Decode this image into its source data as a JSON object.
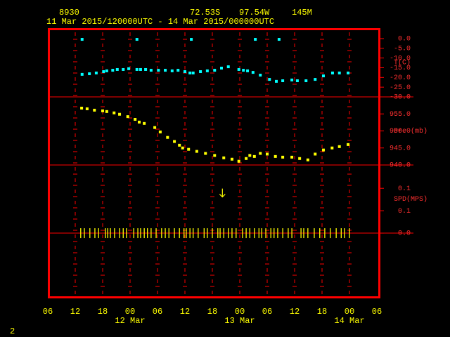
{
  "header": {
    "station": "8930",
    "lat": "72.53S",
    "lon": "97.54W",
    "elev": "145M",
    "period": "11 Mar 2015/120000UTC - 14 Mar 2015/000000UTC",
    "page": "2"
  },
  "x_axis": {
    "xlim": [
      0,
      72
    ],
    "xticks": [
      {
        "value": 0,
        "label": "06"
      },
      {
        "value": 6,
        "label": "12"
      },
      {
        "value": 12,
        "label": "18"
      },
      {
        "value": 18,
        "label": "00"
      },
      {
        "value": 24,
        "label": "06"
      },
      {
        "value": 30,
        "label": "12"
      },
      {
        "value": 36,
        "label": "18"
      },
      {
        "value": 42,
        "label": "00"
      },
      {
        "value": 48,
        "label": "06"
      },
      {
        "value": 54,
        "label": "12"
      },
      {
        "value": 60,
        "label": "18"
      },
      {
        "value": 66,
        "label": "00"
      },
      {
        "value": 72,
        "label": "06"
      }
    ],
    "date_labels": [
      {
        "value": 18,
        "label": "12 Mar"
      },
      {
        "value": 42,
        "label": "13 Mar"
      },
      {
        "value": 66,
        "label": "14 Mar"
      }
    ]
  },
  "chart_data": [
    {
      "type": "scatter",
      "ylabel": "T(C)",
      "ylim": [
        -30,
        5.4
      ],
      "yticks": [
        {
          "value": 0,
          "label": "0.0"
        },
        {
          "value": -5,
          "label": "-5.0"
        },
        {
          "value": -10,
          "label": "-10.0"
        },
        {
          "value": -15,
          "label": "-15.0"
        },
        {
          "value": -20,
          "label": "-20.0"
        },
        {
          "value": -25,
          "label": "-25.0"
        },
        {
          "value": -30,
          "label": "-30.0"
        }
      ],
      "series": [
        {
          "color": "#00ffff",
          "marker": "square",
          "x": [
            7.5,
            9.1,
            10.6,
            12.2,
            12.9,
            14.2,
            15.2,
            16.5,
            17.7,
            19.5,
            20.3,
            21.4,
            22.6,
            24.2,
            25.7,
            27.2,
            28.5,
            30,
            31.1,
            31.8,
            33.4,
            34.9,
            36.5,
            38,
            39.5,
            41.8,
            42.8,
            43.7,
            44.9,
            46.5,
            48.5,
            50,
            51.4,
            53.4,
            54.6,
            56.5,
            58.5,
            60.3,
            62.3,
            63.8,
            65.7
          ],
          "values": [
            -18.4,
            -18.1,
            -17.7,
            -17.0,
            -16.6,
            -16.3,
            -15.9,
            -15.9,
            -15.5,
            -15.9,
            -15.9,
            -15.9,
            -16.3,
            -16.3,
            -16.3,
            -16.6,
            -16.3,
            -17.0,
            -17.7,
            -17.7,
            -17.0,
            -16.6,
            -16.3,
            -15.2,
            -14.5,
            -15.9,
            -16.3,
            -16.6,
            -17.4,
            -18.8,
            -21.0,
            -22.0,
            -21.7,
            -21.3,
            -21.7,
            -21.7,
            -21.0,
            -19.2,
            -17.7,
            -17.7,
            -17.7
          ]
        },
        {
          "color": "#00ffff",
          "marker": "square",
          "x": [
            7.5,
            19.5,
            31.4,
            45.4,
            50.6
          ],
          "values": [
            -0.4,
            -0.4,
            -0.4,
            -0.4,
            -0.4
          ]
        }
      ]
    },
    {
      "type": "scatter",
      "ylabel": "Pre (mb)",
      "ylim": [
        940,
        960
      ],
      "yticks": [
        {
          "value": 955,
          "label": "955.0"
        },
        {
          "value": 950,
          "label": "950.0"
        },
        {
          "value": 945,
          "label": "945.0"
        },
        {
          "value": 940,
          "label": "940.0"
        }
      ],
      "series": [
        {
          "color": "#ffff00",
          "marker": "square",
          "x": [
            7.4,
            8.6,
            10.2,
            12,
            12.9,
            14.5,
            15.7,
            17.5,
            19.1,
            20,
            21.1,
            23.4,
            24.6,
            26.2,
            27.7,
            28.8,
            29.5,
            30.8,
            32.6,
            34.5,
            36.5,
            38.5,
            40.3,
            41.8,
            43.4,
            44.2,
            45.2,
            46.5,
            48,
            49.8,
            51.4,
            53.4,
            55.1,
            56.9,
            58.5,
            60.3,
            62.2,
            63.8,
            65.7
          ],
          "values": [
            956.7,
            956.5,
            956.1,
            955.9,
            955.7,
            955.3,
            954.9,
            954.2,
            953.4,
            952.6,
            952.2,
            951.0,
            949.7,
            948.1,
            946.9,
            945.8,
            945.0,
            944.6,
            944.0,
            943.4,
            942.8,
            942.1,
            941.7,
            941.1,
            941.9,
            942.8,
            942.5,
            943.4,
            943.2,
            942.5,
            942.3,
            942.3,
            941.9,
            941.5,
            943.2,
            944.4,
            945.0,
            945.4,
            946.0
          ]
        }
      ]
    },
    {
      "type": "scatter",
      "ylabel": "SPD(MPS)",
      "ylim": [
        -0.144,
        0.152
      ],
      "yticks": [
        0.1,
        {
          "value": 0.05,
          "label": "0.1"
        },
        {
          "value": 0,
          "label": "0.0"
        }
      ],
      "series": [
        {
          "color": "#ffff00",
          "marker": "tick",
          "x": [
            7.2,
            8.0,
            9.2,
            10.3,
            11.1,
            12.6,
            13.1,
            13.7,
            14.6,
            15.7,
            16.5,
            17.2,
            18.8,
            19.7,
            20.3,
            21.1,
            21.8,
            22.6,
            23.7,
            24.9,
            25.7,
            26.5,
            27.7,
            28.8,
            29.8,
            30.3,
            31.1,
            31.8,
            32.9,
            34.2,
            34.9,
            36.0,
            37.2,
            37.7,
            38.5,
            39.5,
            40.3,
            41.2,
            42.6,
            43.4,
            44.2,
            45.2,
            46.2,
            46.8,
            47.7,
            48.8,
            49.5,
            50.3,
            51.4,
            52.6,
            53.4,
            55.4,
            56.0,
            56.9,
            58.3,
            59.5,
            60.6,
            61.8,
            63.1,
            64.2,
            64.9,
            66.0
          ],
          "values": [
            0,
            0,
            0,
            0,
            0,
            0,
            0,
            0,
            0,
            0,
            0,
            0,
            0,
            0,
            0,
            0,
            0,
            0,
            0,
            0,
            0,
            0,
            0,
            0,
            0,
            0,
            0,
            0,
            0,
            0,
            0,
            0,
            0,
            0,
            0,
            0,
            0,
            0,
            0,
            0,
            0,
            0,
            0,
            0,
            0,
            0,
            0,
            0,
            0,
            0,
            0,
            0,
            0,
            0,
            0,
            0,
            0,
            0,
            0,
            0,
            0,
            0
          ]
        },
        {
          "color": "#ffff00",
          "marker": "arrow",
          "x": [
            38.2
          ],
          "values": [
            0.09
          ]
        }
      ]
    }
  ]
}
